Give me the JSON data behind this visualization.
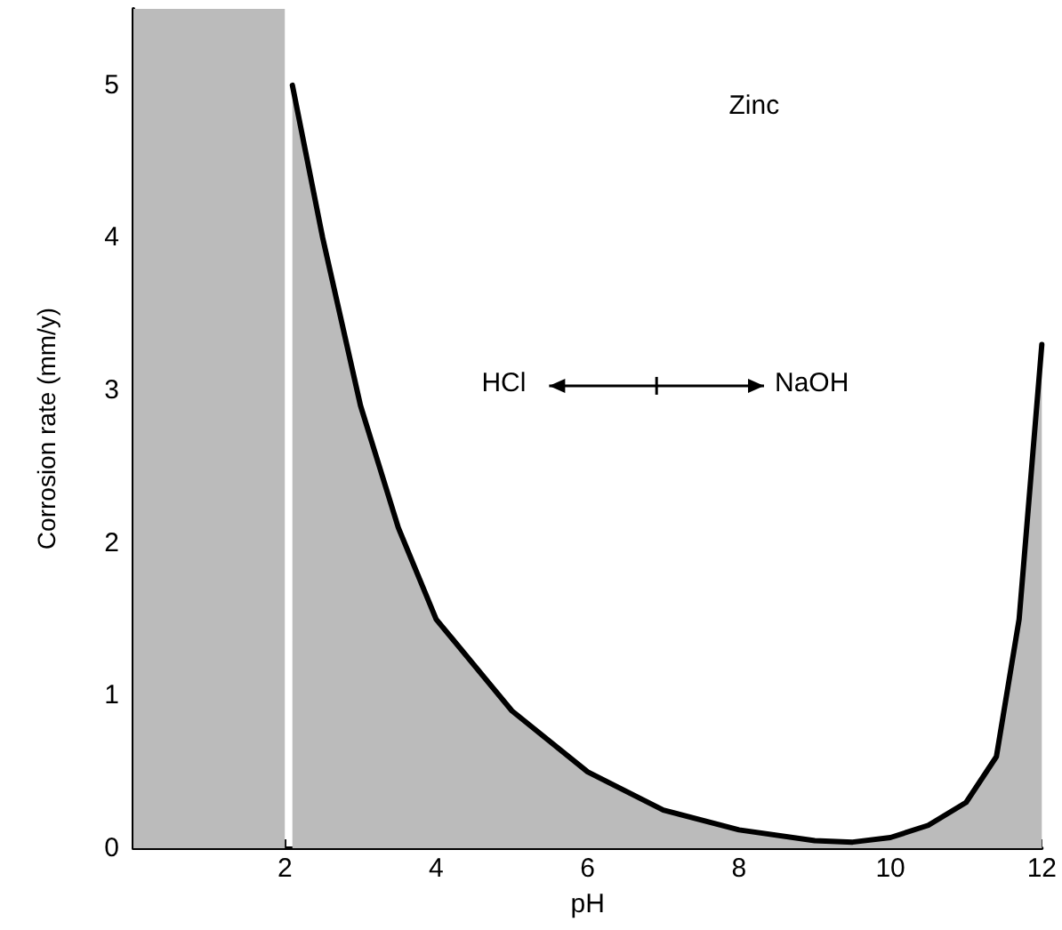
{
  "chart_data": {
    "type": "area",
    "xlabel": "pH",
    "ylabel": "Corrosion rate (mm/y)",
    "annotations": [
      "Zinc",
      "HCl",
      "NaOH"
    ],
    "x": [
      2.1,
      2.5,
      3,
      3.5,
      4,
      5,
      6,
      7,
      8,
      9,
      9.5,
      10,
      10.5,
      11,
      11.4,
      11.7,
      12
    ],
    "series": [
      {
        "color": "#000000",
        "values": [
          5.0,
          4.0,
          2.9,
          2.1,
          1.5,
          0.9,
          0.5,
          0.25,
          0.12,
          0.05,
          0.04,
          0.07,
          0.15,
          0.3,
          0.6,
          1.5,
          3.3
        ]
      }
    ],
    "bands": [
      {
        "axis": "x",
        "from": 0,
        "to": 2,
        "color": "#bbbbbb"
      }
    ],
    "xlim": [
      0,
      12
    ],
    "xticks": [
      2,
      4,
      6,
      8,
      10,
      12
    ],
    "ylim": [
      0,
      5.5
    ],
    "yticks": [
      0,
      1,
      2,
      3,
      4,
      5
    ],
    "grid": false,
    "marker": "none",
    "line_style": "solid"
  }
}
